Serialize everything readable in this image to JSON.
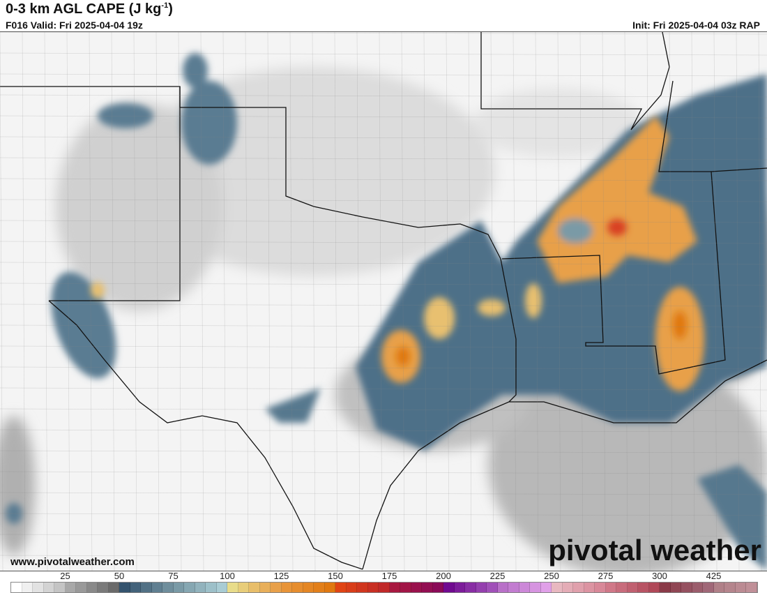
{
  "header": {
    "title": "0-3 km AGL CAPE (J kg",
    "title_sup": "-1",
    "title_end": ")",
    "valid": "F016 Valid: Fri 2025-04-04 19z",
    "init": "Init: Fri 2025-04-04 03z RAP"
  },
  "footer": {
    "website": "www.pivotalweather.com",
    "logo": "pivotal weather"
  },
  "colorbar": {
    "labels": [
      "25",
      "50",
      "75",
      "100",
      "125",
      "150",
      "175",
      "200",
      "225",
      "250",
      "275",
      "300",
      "425"
    ],
    "blocks": [
      [
        "#ffffff",
        "#c4c4c4"
      ],
      [
        "#a8a8a8",
        "#6a6a6a"
      ],
      [
        "#34536e",
        "#6f8e9c"
      ],
      [
        "#7a9aa6",
        "#a9ccd4"
      ],
      [
        "#e8dc8a",
        "#e8a04a"
      ],
      [
        "#e89438",
        "#e07810"
      ],
      [
        "#e04414",
        "#c02828"
      ],
      [
        "#a81840",
        "#8a0a58"
      ],
      [
        "#700a90",
        "#a050b8"
      ],
      [
        "#b870c8",
        "#e0a0e8"
      ],
      [
        "#e8b8c0",
        "#d88898"
      ],
      [
        "#d07888",
        "#b04858"
      ],
      [
        "#8a3a48",
        "#a06878"
      ],
      [
        "#b08088",
        "#c09098"
      ]
    ]
  },
  "map": {
    "background": "#f0f0f0",
    "low_cape": "#c8c8c8",
    "mid_cape": "#4d6f88",
    "high_cape": "#e8a04a",
    "peak_cape": "#d84020",
    "border_color": "#111111"
  }
}
